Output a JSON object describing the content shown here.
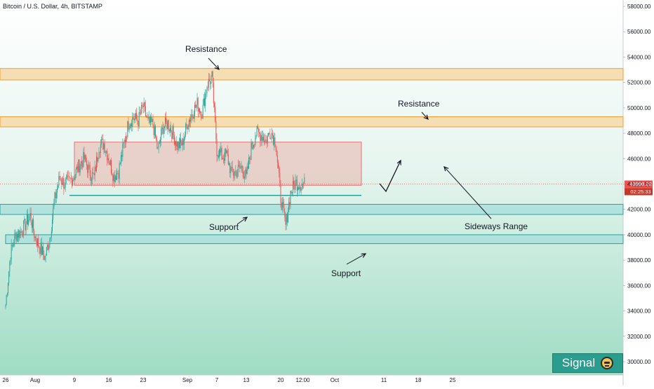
{
  "header": {
    "symbol_title": "Bitcoin / U.S. Dollar, 4h, BITSTAMP"
  },
  "price_scale": {
    "labels": [
      "58000.00",
      "56000.00",
      "54000.00",
      "52000.00",
      "50000.00",
      "48000.00",
      "46000.00",
      "44000.00",
      "42000.00",
      "40000.00",
      "38000.00",
      "36000.00",
      "34000.00",
      "32000.00",
      "30000.00"
    ],
    "values": [
      58000,
      56000,
      54000,
      52000,
      50000,
      48000,
      46000,
      44000,
      42000,
      40000,
      38000,
      36000,
      34000,
      32000,
      30000
    ],
    "current_price": "43998.22",
    "countdown": "02:25:33"
  },
  "time_scale": {
    "labels": [
      "26",
      "Aug",
      "9",
      "16",
      "23",
      "Sep",
      "7",
      "13",
      "20",
      "12:00",
      "Oct",
      "11",
      "18",
      "25"
    ],
    "dates": [
      "2021-07-26",
      "2021-08-01",
      "2021-08-09",
      "2021-08-16",
      "2021-08-23",
      "2021-09-01",
      "2021-09-07",
      "2021-09-13",
      "2021-09-20",
      "2021-09-24 12:00",
      "2021-10-01",
      "2021-10-11",
      "2021-10-18",
      "2021-10-25"
    ]
  },
  "annotations": {
    "resistance_top": "Resistance",
    "resistance_mid": "Resistance",
    "support_mid": "Support",
    "support_bottom": "Support",
    "sideways_range": "Sideways Range"
  },
  "branding": {
    "label": "Signal",
    "icon": "face-icon"
  },
  "colors": {
    "candle_up": "#26a69a",
    "candle_down": "#ef5350",
    "resistance_zone": "#f5d7a3",
    "resistance_border": "#f39c37",
    "support_zone": "#a7e0dc",
    "support_border": "#2aa198",
    "range_box": "#e8b9b0",
    "range_border": "#e57373",
    "price_tag": "#ef5350",
    "countdown_tag": "#c0392b"
  },
  "chart_data": {
    "type": "candlestick",
    "title": "Bitcoin / U.S. Dollar, 4h, BITSTAMP",
    "ylim": [
      29000,
      59000
    ],
    "xlim": [
      "2021-07-26",
      "2021-10-28"
    ],
    "series": [
      {
        "x": [
          "2021-07-26",
          "2021-07-27",
          "2021-07-28",
          "2021-07-29",
          "2021-07-30",
          "2021-07-31",
          "2021-08-01",
          "2021-08-02",
          "2021-08-03",
          "2021-08-04",
          "2021-08-05",
          "2021-08-06",
          "2021-08-07",
          "2021-08-08",
          "2021-08-09",
          "2021-08-10",
          "2021-08-11",
          "2021-08-12",
          "2021-08-13",
          "2021-08-14",
          "2021-08-15",
          "2021-08-16",
          "2021-08-17",
          "2021-08-18",
          "2021-08-19",
          "2021-08-20",
          "2021-08-21",
          "2021-08-22",
          "2021-08-23",
          "2021-08-24",
          "2021-08-25",
          "2021-08-26",
          "2021-08-27",
          "2021-08-28",
          "2021-08-29",
          "2021-08-30",
          "2021-08-31",
          "2021-09-01",
          "2021-09-02",
          "2021-09-03",
          "2021-09-04",
          "2021-09-05",
          "2021-09-06",
          "2021-09-07",
          "2021-09-08",
          "2021-09-09",
          "2021-09-10",
          "2021-09-11",
          "2021-09-12",
          "2021-09-13",
          "2021-09-14",
          "2021-09-15",
          "2021-09-16",
          "2021-09-17",
          "2021-09-18",
          "2021-09-19",
          "2021-09-20",
          "2021-09-21",
          "2021-09-22",
          "2021-09-23",
          "2021-09-24"
        ],
        "close": [
          34500,
          38500,
          40000,
          40200,
          40800,
          41500,
          39800,
          39000,
          38200,
          39800,
          42800,
          44500,
          44000,
          44200,
          44700,
          45500,
          46000,
          45000,
          44500,
          47000,
          47200,
          46000,
          44600,
          45000,
          47000,
          48800,
          49200,
          49000,
          50100,
          48800,
          48700,
          46600,
          48500,
          48800,
          48000,
          47000,
          47200,
          48800,
          49600,
          50300,
          49600,
          51800,
          52400,
          46700,
          46200,
          46300,
          44800,
          45000,
          45300,
          44500,
          46800,
          48000,
          47900,
          47400,
          48200,
          47200,
          42900,
          40700,
          43300,
          44100,
          43998
        ]
      }
    ],
    "zones": [
      {
        "type": "resistance",
        "from": 52200,
        "to": 53100
      },
      {
        "type": "resistance",
        "from": 48500,
        "to": 49300
      },
      {
        "type": "sideways_range",
        "from": 43900,
        "to": 47300
      },
      {
        "type": "support",
        "from": 41600,
        "to": 42400
      },
      {
        "type": "support",
        "from": 39300,
        "to": 40000
      }
    ],
    "support_line": 43100,
    "current_price": 43998.22
  }
}
